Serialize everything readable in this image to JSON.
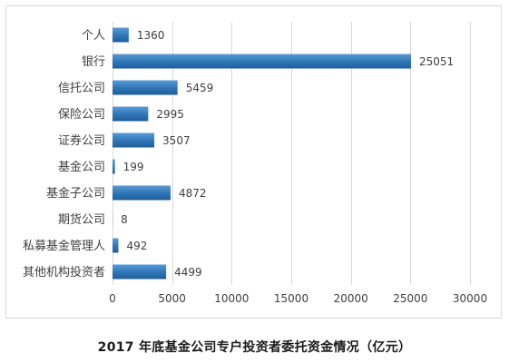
{
  "caption": "2017 年底基金公司专户投资者委托资金情况（亿元）",
  "chart_data": {
    "type": "bar",
    "orientation": "horizontal",
    "title": "2017 年底基金公司专户投资者委托资金情况（亿元）",
    "categories": [
      "个人",
      "银行",
      "信托公司",
      "保险公司",
      "证券公司",
      "基金公司",
      "基金子公司",
      "期货公司",
      "私募基金管理人",
      "其他机构投资者"
    ],
    "values": [
      1360,
      25051,
      5459,
      2995,
      3507,
      199,
      4872,
      8,
      492,
      4499
    ],
    "xlim": [
      0,
      30000
    ],
    "xticks": [
      0,
      5000,
      10000,
      15000,
      20000,
      25000,
      30000
    ],
    "grid": "vertical",
    "legend": "none",
    "bar_color": "#2e75b6"
  }
}
